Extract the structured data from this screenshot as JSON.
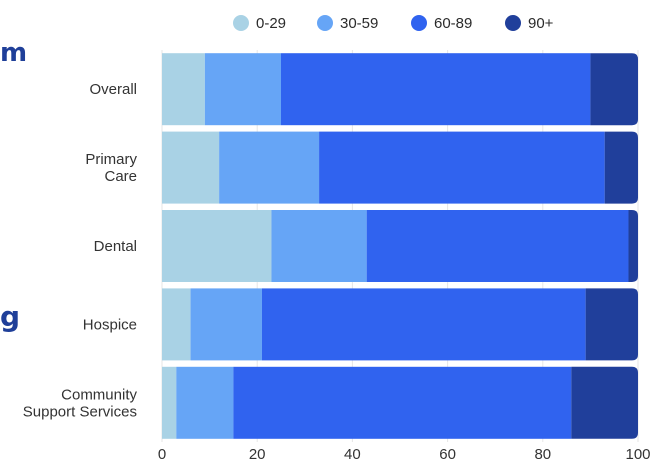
{
  "partial_left_text": [
    "m",
    "g"
  ],
  "colors": {
    "series": [
      "#a9d2e5",
      "#66a5f6",
      "#3063ef",
      "#203f9b"
    ],
    "background": "#ffffff",
    "bar_edge": "#ffffff",
    "tick_text": "#333333",
    "legend_text": "#2b2b2b",
    "partial_text": "#1f3f99"
  },
  "chart_data": {
    "type": "bar",
    "orientation": "horizontal",
    "stacked": true,
    "categories": [
      [
        "Overall"
      ],
      [
        "Primary",
        "Care"
      ],
      [
        "Dental"
      ],
      [
        "Hospice"
      ],
      [
        "Community",
        "Support Services"
      ]
    ],
    "series": [
      {
        "name": "0-29",
        "values": [
          9,
          12,
          23,
          6,
          3
        ]
      },
      {
        "name": "30-59",
        "values": [
          16,
          21,
          20,
          15,
          12
        ]
      },
      {
        "name": "60-89",
        "values": [
          65,
          60,
          55,
          68,
          71
        ]
      },
      {
        "name": "90+",
        "values": [
          10,
          7,
          2,
          11,
          14
        ]
      }
    ],
    "title": "",
    "xlabel": "",
    "ylabel": "",
    "xlim": [
      0,
      100
    ],
    "xticks": [
      0,
      20,
      40,
      60,
      80,
      100
    ],
    "grid": true,
    "legend_position": "top"
  }
}
